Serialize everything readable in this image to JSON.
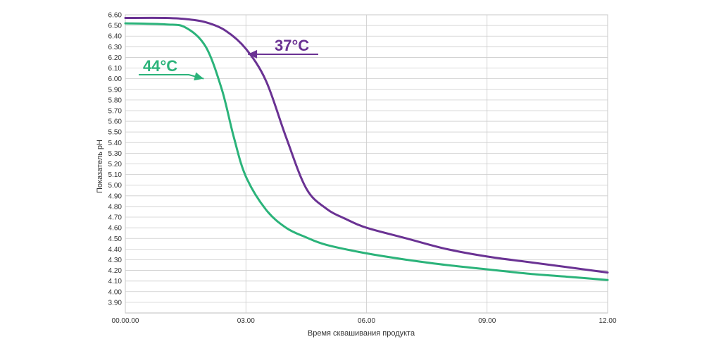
{
  "chart_data": {
    "type": "line",
    "xlabel": "Время сквашивания продукта",
    "ylabel": "Показатель pH",
    "xlim": [
      0,
      12
    ],
    "ylim": [
      3.8,
      6.6
    ],
    "x_ticks": [
      {
        "value": 0,
        "label": "00.00.00"
      },
      {
        "value": 3,
        "label": "03.00"
      },
      {
        "value": 6,
        "label": "06.00"
      },
      {
        "value": 9,
        "label": "09.00"
      },
      {
        "value": 12,
        "label": "12.00"
      }
    ],
    "y_ticks": [
      "3.90",
      "4.00",
      "4.10",
      "4.20",
      "4.30",
      "4.40",
      "4.50",
      "4.60",
      "4.70",
      "4.80",
      "4.90",
      "5.00",
      "5.10",
      "5.20",
      "5.30",
      "5.40",
      "5.50",
      "5.60",
      "5.70",
      "5.80",
      "5.90",
      "6.00",
      "6.10",
      "6.20",
      "6.30",
      "6.40",
      "6.50",
      "6.60"
    ],
    "grid": true,
    "legend": "none",
    "series": [
      {
        "name": "37°C",
        "color": "#6a3293",
        "points": [
          [
            0,
            6.57
          ],
          [
            1,
            6.57
          ],
          [
            1.5,
            6.56
          ],
          [
            2,
            6.53
          ],
          [
            2.5,
            6.45
          ],
          [
            3,
            6.28
          ],
          [
            3.5,
            5.98
          ],
          [
            4,
            5.45
          ],
          [
            4.5,
            4.97
          ],
          [
            5,
            4.78
          ],
          [
            5.5,
            4.68
          ],
          [
            6,
            4.6
          ],
          [
            7,
            4.5
          ],
          [
            8,
            4.4
          ],
          [
            9,
            4.33
          ],
          [
            10,
            4.28
          ],
          [
            11,
            4.23
          ],
          [
            12,
            4.18
          ]
        ]
      },
      {
        "name": "44°C",
        "color": "#2bb37a",
        "points": [
          [
            0,
            6.52
          ],
          [
            1,
            6.51
          ],
          [
            1.5,
            6.48
          ],
          [
            2,
            6.3
          ],
          [
            2.4,
            5.9
          ],
          [
            2.7,
            5.45
          ],
          [
            3,
            5.08
          ],
          [
            3.5,
            4.77
          ],
          [
            4,
            4.6
          ],
          [
            4.5,
            4.51
          ],
          [
            5,
            4.44
          ],
          [
            6,
            4.36
          ],
          [
            7,
            4.3
          ],
          [
            8,
            4.25
          ],
          [
            9,
            4.21
          ],
          [
            10,
            4.17
          ],
          [
            11,
            4.14
          ],
          [
            12,
            4.11
          ]
        ]
      }
    ],
    "annotations": [
      {
        "text": "37°C",
        "series": 0,
        "x": 3.05,
        "y": 6.23
      },
      {
        "text": "44°C",
        "series": 1,
        "x": 1.95,
        "y": 6.0
      }
    ]
  }
}
